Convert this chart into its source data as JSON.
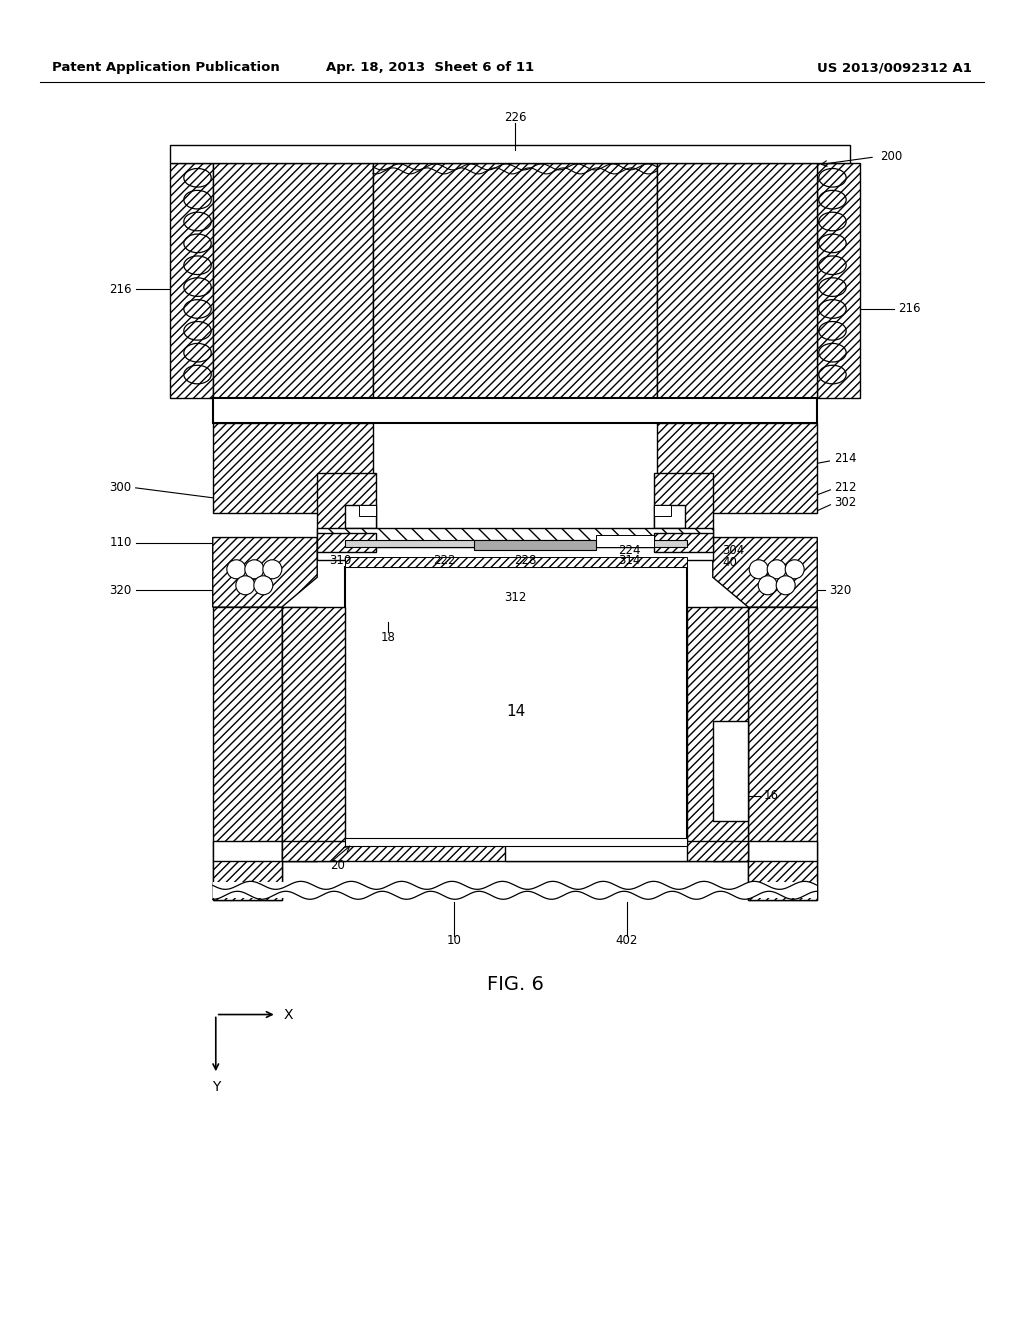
{
  "bg_color": "#ffffff",
  "header_left": "Patent Application Publication",
  "header_center": "Apr. 18, 2013  Sheet 6 of 11",
  "header_right": "US 2013/0092312 A1",
  "figure_label": "FIG. 6"
}
